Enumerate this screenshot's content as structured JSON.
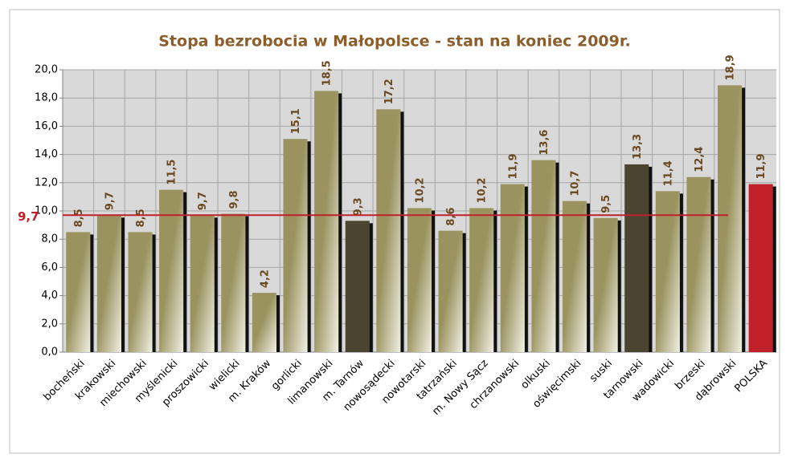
{
  "chart_data": {
    "type": "bar",
    "title": "Stopa bezrobocia w Małopolsce - stan na koniec 2009r.",
    "categories": [
      "bocheński",
      "krakowski",
      "miechowski",
      "myślenicki",
      "proszowicki",
      "wielicki",
      "m. Kraków",
      "gorlicki",
      "limanowski",
      "m. Tarnów",
      "nowosądecki",
      "nowotarski",
      "tatrzański",
      "m. Nowy Sącz",
      "chrzanowski",
      "olkuski",
      "oświęcimski",
      "suski",
      "tarnowski",
      "wadowicki",
      "brzeski",
      "dąbrowski",
      "POLSKA"
    ],
    "values": [
      8.5,
      9.7,
      8.5,
      11.5,
      9.7,
      9.8,
      4.2,
      15.1,
      18.5,
      9.3,
      17.2,
      10.2,
      8.6,
      10.2,
      11.9,
      13.6,
      10.7,
      9.5,
      13.3,
      11.4,
      12.4,
      18.9,
      11.9
    ],
    "value_labels": [
      "8,5",
      "9,7",
      "8,5",
      "11,5",
      "9,7",
      "9,8",
      "4,2",
      "15,1",
      "18,5",
      "9,3",
      "17,2",
      "10,2",
      "8,6",
      "10,2",
      "11,9",
      "13,6",
      "10,7",
      "9,5",
      "13,3",
      "11,4",
      "12,4",
      "18,9",
      "11,9"
    ],
    "colors": [
      "#9a9360",
      "#9a9360",
      "#9a9360",
      "#9a9360",
      "#9a9360",
      "#9a9360",
      "#9a9360",
      "#9a9360",
      "#9a9360",
      "#4a4530",
      "#9a9360",
      "#9a9360",
      "#9a9360",
      "#9a9360",
      "#9a9360",
      "#9a9360",
      "#9a9360",
      "#9a9360",
      "#4a4530",
      "#9a9360",
      "#9a9360",
      "#9a9360",
      "#c0202a"
    ],
    "gradient_colors": [
      "#9a9360"
    ],
    "ylim": [
      0,
      20
    ],
    "yticks": [
      {
        "value": 0,
        "label": "0,0"
      },
      {
        "value": 2,
        "label": "2,0"
      },
      {
        "value": 4,
        "label": "4,0"
      },
      {
        "value": 6,
        "label": "6,0"
      },
      {
        "value": 8,
        "label": "8,0"
      },
      {
        "value": 10,
        "label": "10,0"
      },
      {
        "value": 12,
        "label": "12,0"
      },
      {
        "value": 14,
        "label": "14,0"
      },
      {
        "value": 16,
        "label": "16,0"
      },
      {
        "value": 18,
        "label": "18,0"
      },
      {
        "value": 20,
        "label": "20,0"
      }
    ],
    "grid": true,
    "reference_line": {
      "value": 9.7,
      "label": "9,7",
      "color": "#c0202a"
    }
  }
}
